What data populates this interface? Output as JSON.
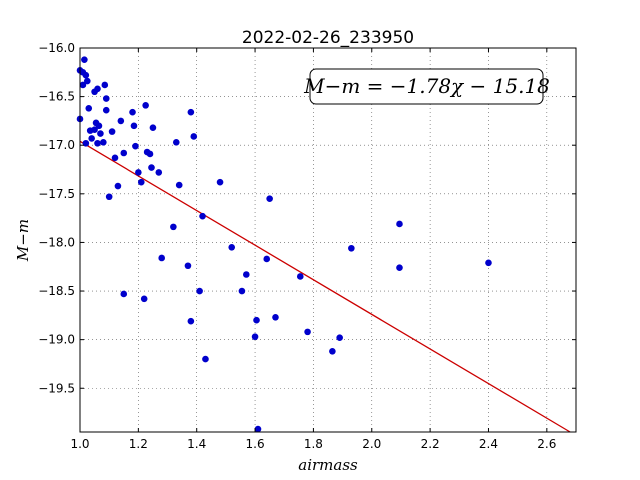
{
  "chart_data": {
    "type": "scatter",
    "title": "2022-02-26_233950",
    "xlabel": "airmass",
    "ylabel": "M−m",
    "xlim": [
      1.0,
      2.7
    ],
    "ylim": [
      -19.95,
      -16.0
    ],
    "x_ticks": [
      1.0,
      1.2,
      1.4,
      1.6,
      1.8,
      2.0,
      2.2,
      2.4,
      2.6
    ],
    "x_tick_labels": [
      "1.0",
      "1.2",
      "1.4",
      "1.6",
      "1.8",
      "2.0",
      "2.2",
      "2.4",
      "2.6"
    ],
    "y_ticks": [
      -16.0,
      -16.5,
      -17.0,
      -17.5,
      -18.0,
      -18.5,
      -19.0,
      -19.5
    ],
    "y_tick_labels": [
      "−16.0",
      "−16.5",
      "−17.0",
      "−17.5",
      "−18.0",
      "−18.5",
      "−19.0",
      "−19.5"
    ],
    "grid": true,
    "annotation": "M−m = −1.78χ − 15.18",
    "fit": {
      "slope": -1.78,
      "intercept": -15.18,
      "color": "#cc0000"
    },
    "point_color": "#0000cc",
    "points": [
      [
        1.0,
        -16.23
      ],
      [
        1.0,
        -16.73
      ],
      [
        1.01,
        -16.38
      ],
      [
        1.01,
        -16.25
      ],
      [
        1.015,
        -16.12
      ],
      [
        1.02,
        -16.28
      ],
      [
        1.02,
        -16.98
      ],
      [
        1.025,
        -16.34
      ],
      [
        1.03,
        -16.62
      ],
      [
        1.035,
        -16.85
      ],
      [
        1.04,
        -16.93
      ],
      [
        1.05,
        -16.45
      ],
      [
        1.05,
        -16.84
      ],
      [
        1.055,
        -16.77
      ],
      [
        1.06,
        -16.42
      ],
      [
        1.06,
        -16.98
      ],
      [
        1.065,
        -16.8
      ],
      [
        1.07,
        -16.88
      ],
      [
        1.08,
        -16.97
      ],
      [
        1.085,
        -16.38
      ],
      [
        1.09,
        -16.52
      ],
      [
        1.09,
        -16.64
      ],
      [
        1.1,
        -17.53
      ],
      [
        1.11,
        -16.86
      ],
      [
        1.12,
        -17.13
      ],
      [
        1.13,
        -17.42
      ],
      [
        1.14,
        -16.75
      ],
      [
        1.15,
        -18.53
      ],
      [
        1.15,
        -17.08
      ],
      [
        1.18,
        -16.66
      ],
      [
        1.185,
        -16.8
      ],
      [
        1.19,
        -17.01
      ],
      [
        1.2,
        -17.28
      ],
      [
        1.21,
        -17.38
      ],
      [
        1.22,
        -18.58
      ],
      [
        1.225,
        -16.59
      ],
      [
        1.23,
        -17.07
      ],
      [
        1.24,
        -17.09
      ],
      [
        1.245,
        -17.23
      ],
      [
        1.25,
        -16.82
      ],
      [
        1.27,
        -17.28
      ],
      [
        1.28,
        -18.16
      ],
      [
        1.32,
        -17.84
      ],
      [
        1.33,
        -16.97
      ],
      [
        1.34,
        -17.41
      ],
      [
        1.37,
        -18.24
      ],
      [
        1.38,
        -18.81
      ],
      [
        1.38,
        -16.66
      ],
      [
        1.39,
        -16.91
      ],
      [
        1.41,
        -18.5
      ],
      [
        1.42,
        -17.73
      ],
      [
        1.43,
        -19.2
      ],
      [
        1.48,
        -17.38
      ],
      [
        1.52,
        -18.05
      ],
      [
        1.555,
        -18.5
      ],
      [
        1.57,
        -18.33
      ],
      [
        1.6,
        -18.97
      ],
      [
        1.605,
        -18.8
      ],
      [
        1.61,
        -19.92
      ],
      [
        1.64,
        -18.17
      ],
      [
        1.65,
        -17.55
      ],
      [
        1.67,
        -18.77
      ],
      [
        1.755,
        -18.35
      ],
      [
        1.78,
        -18.92
      ],
      [
        1.865,
        -19.12
      ],
      [
        1.89,
        -18.98
      ],
      [
        1.93,
        -18.06
      ],
      [
        2.095,
        -17.81
      ],
      [
        2.095,
        -18.26
      ],
      [
        2.4,
        -18.21
      ]
    ]
  }
}
